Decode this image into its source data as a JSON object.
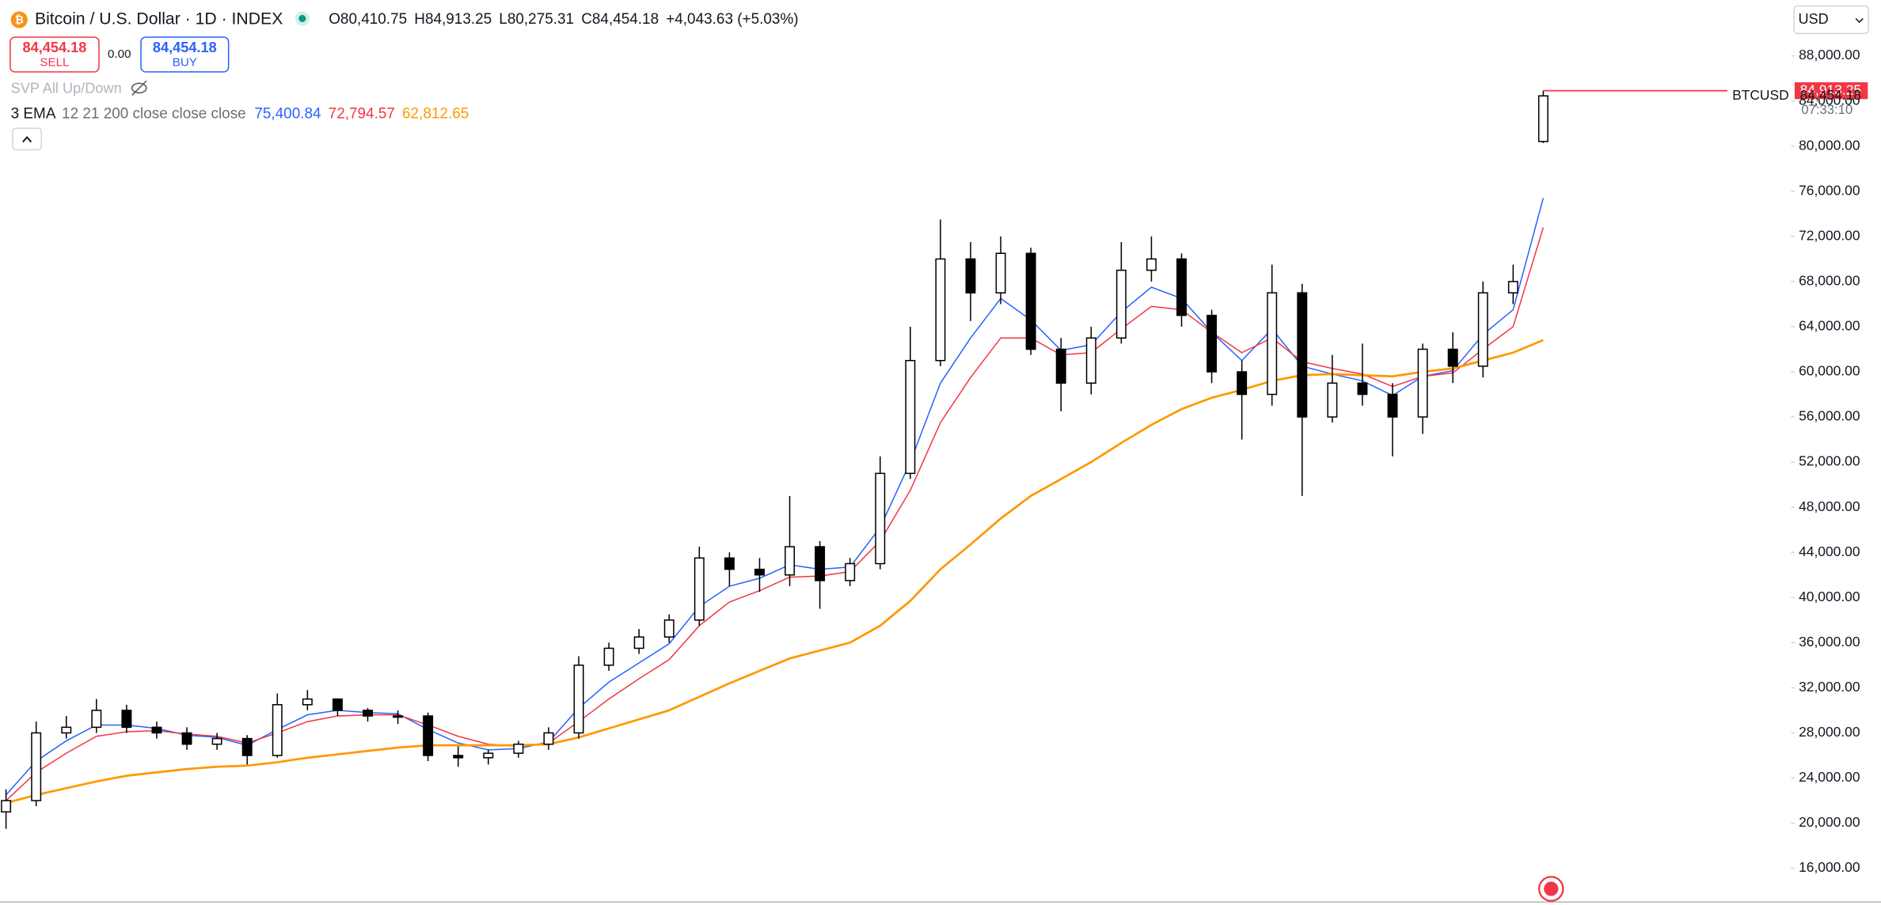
{
  "header": {
    "symbol": "Bitcoin / U.S. Dollar · 1D · INDEX",
    "o_key": "O",
    "o": "80,410.75",
    "h_key": "H",
    "h": "84,913.25",
    "l_key": "L",
    "l": "80,275.31",
    "c_key": "C",
    "c": "84,454.18",
    "change": "+4,043.63 (+5.03%)",
    "sell_price": "84,454.18",
    "sell": "SELL",
    "spread": "0.00",
    "buy_price": "84,454.18",
    "buy": "BUY",
    "currency": "USD"
  },
  "indicators": {
    "svp": "SVP All Up/Down",
    "ema_name": "3 EMA",
    "ema_params": "12 21 200 close close close",
    "ema_values": [
      "75,400.84",
      "72,794.57",
      "62,812.65"
    ]
  },
  "chart_data": {
    "type": "candlestick",
    "xlim": [
      -0.2,
      59.1
    ],
    "ylim": [
      12800,
      92900
    ],
    "yticks": [
      {
        "value": 16000,
        "label": "16,000.00"
      },
      {
        "value": 20000,
        "label": "20,000.00"
      },
      {
        "value": 24000,
        "label": "24,000.00"
      },
      {
        "value": 28000,
        "label": "28,000.00"
      },
      {
        "value": 32000,
        "label": "32,000.00"
      },
      {
        "value": 36000,
        "label": "36,000.00"
      },
      {
        "value": 40000,
        "label": "40,000.00"
      },
      {
        "value": 44000,
        "label": "44,000.00"
      },
      {
        "value": 48000,
        "label": "48,000.00"
      },
      {
        "value": 52000,
        "label": "52,000.00"
      },
      {
        "value": 56000,
        "label": "56,000.00"
      },
      {
        "value": 60000,
        "label": "60,000.00"
      },
      {
        "value": 64000,
        "label": "64,000.00"
      },
      {
        "value": 68000,
        "label": "68,000.00"
      },
      {
        "value": 72000,
        "label": "72,000.00"
      },
      {
        "value": 76000,
        "label": "76,000.00"
      },
      {
        "value": 80000,
        "label": "80,000.00"
      },
      {
        "value": 84000,
        "label": "84,000.00"
      },
      {
        "value": 88000,
        "label": "88,000.00"
      }
    ],
    "up_color": "#ffffff",
    "down_color": "#000000",
    "candles": {
      "open": [
        21000,
        22000,
        28000,
        28500,
        30000,
        28500,
        28000,
        27000,
        27500,
        26000,
        30500,
        31000,
        30000,
        29500,
        29500,
        26000,
        25800,
        26200,
        27000,
        28000,
        34000,
        35500,
        36500,
        38000,
        43500,
        42500,
        42000,
        44500,
        41500,
        43000,
        51000,
        61000,
        70000,
        67000,
        70500,
        62000,
        59000,
        63000,
        69000,
        70000,
        65000,
        60000,
        58000,
        67000,
        56000,
        59000,
        58000,
        56000,
        62000,
        60500,
        67000,
        80410.75
      ],
      "high": [
        23000,
        29000,
        29500,
        31000,
        30500,
        29000,
        28500,
        28000,
        27800,
        31500,
        31800,
        31000,
        30200,
        30000,
        29800,
        26800,
        26500,
        27300,
        28500,
        34800,
        36000,
        37200,
        38500,
        44500,
        44000,
        43500,
        49000,
        45000,
        43500,
        52500,
        64000,
        73500,
        71500,
        72000,
        71000,
        63000,
        64000,
        71500,
        72000,
        70500,
        65500,
        61000,
        69500,
        67800,
        61500,
        62500,
        59000,
        62500,
        63500,
        68000,
        69500,
        84913.25
      ],
      "low": [
        19500,
        21500,
        27500,
        28000,
        28000,
        27500,
        26500,
        26500,
        25200,
        25800,
        30000,
        29500,
        29000,
        28800,
        25500,
        25000,
        25200,
        25800,
        26500,
        27500,
        33500,
        35000,
        36000,
        37500,
        41000,
        40500,
        41000,
        39000,
        41000,
        42500,
        50500,
        60500,
        64500,
        66000,
        61500,
        56500,
        58000,
        62500,
        68000,
        64000,
        59000,
        54000,
        57000,
        49000,
        55500,
        57000,
        52500,
        54500,
        59000,
        59500,
        66000,
        80275.31
      ],
      "close": [
        22000,
        28000,
        28500,
        30000,
        28500,
        28000,
        27000,
        27500,
        26000,
        30500,
        31000,
        30000,
        29500,
        29500,
        26000,
        25800,
        26200,
        27000,
        28000,
        34000,
        35500,
        36500,
        38000,
        43500,
        42500,
        42000,
        44500,
        41500,
        43000,
        51000,
        61000,
        70000,
        67000,
        70500,
        62000,
        59000,
        63000,
        69000,
        70000,
        65000,
        60000,
        58000,
        67000,
        56000,
        59000,
        58000,
        56000,
        62000,
        60500,
        67000,
        68000,
        84454.18
      ]
    },
    "series": [
      {
        "color": "#2962ff",
        "values": [
          22500,
          25500,
          27300,
          28700,
          28700,
          28400,
          27800,
          27600,
          26900,
          28300,
          29600,
          30000,
          29800,
          29700,
          28300,
          27100,
          26500,
          26600,
          27200,
          30200,
          32500,
          34200,
          35900,
          39200,
          41000,
          41700,
          42900,
          42500,
          42700,
          46200,
          52000,
          59000,
          63000,
          66500,
          64600,
          61900,
          62400,
          65300,
          67500,
          66500,
          63500,
          61000,
          63800,
          60500,
          59800,
          59200,
          57900,
          59600,
          60100,
          63300,
          65500,
          75400.84
        ]
      },
      {
        "color": "#f23645",
        "values": [
          22000,
          24500,
          26200,
          27700,
          28100,
          28200,
          27900,
          27700,
          27100,
          28000,
          29000,
          29500,
          29600,
          29600,
          28700,
          27700,
          27000,
          26800,
          27100,
          29000,
          31000,
          32800,
          34500,
          37500,
          39600,
          40600,
          41800,
          41900,
          42300,
          45000,
          49500,
          55500,
          59500,
          63000,
          63000,
          61500,
          61700,
          63800,
          65800,
          65500,
          63500,
          61700,
          63000,
          60900,
          60300,
          59800,
          58700,
          59600,
          59900,
          62000,
          64000,
          72794.57
        ]
      },
      {
        "color": "#ff9800",
        "values": [
          21800,
          22500,
          23100,
          23700,
          24200,
          24500,
          24800,
          25000,
          25100,
          25400,
          25800,
          26100,
          26400,
          26700,
          26900,
          26900,
          26900,
          26900,
          27000,
          27600,
          28400,
          29200,
          30000,
          31200,
          32400,
          33500,
          34600,
          35300,
          36000,
          37500,
          39700,
          42500,
          44700,
          47000,
          49000,
          50500,
          52000,
          53700,
          55300,
          56700,
          57700,
          58400,
          59200,
          59700,
          59800,
          59700,
          59600,
          60000,
          60300,
          61000,
          61700,
          62812.65
        ]
      }
    ],
    "high_tag": "84,913.25",
    "last_tag": "84,454.18",
    "countdown": "07:33:10",
    "symbol_tag": "BTCUSD"
  }
}
